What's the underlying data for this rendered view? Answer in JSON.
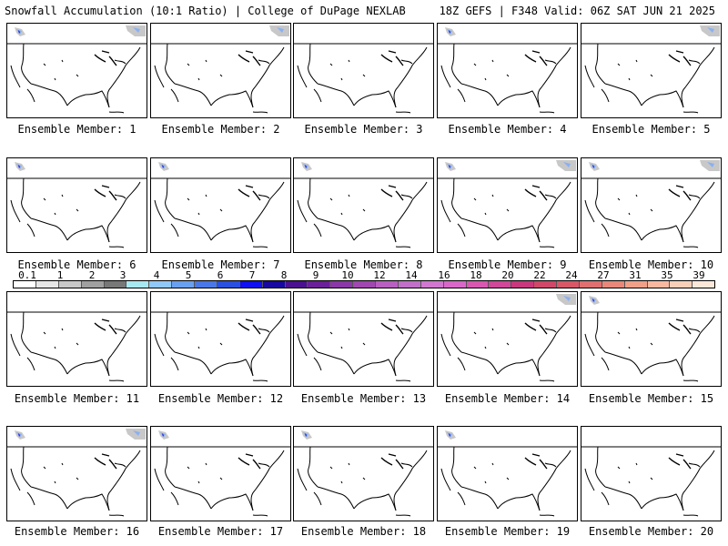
{
  "header": {
    "title": "Snowfall Accumulation (10:1 Ratio) | College of DuPage NEXLAB",
    "run_info": "18Z GEFS | F348 Valid: 06Z SAT JUN 21 2025"
  },
  "members": [
    {
      "label": "Ensemble Member: 1",
      "snow": [
        "west",
        "ne"
      ]
    },
    {
      "label": "Ensemble Member: 2",
      "snow": [
        "ne"
      ]
    },
    {
      "label": "Ensemble Member: 3",
      "snow": []
    },
    {
      "label": "Ensemble Member: 4",
      "snow": [
        "west"
      ]
    },
    {
      "label": "Ensemble Member: 5",
      "snow": [
        "ne"
      ]
    },
    {
      "label": "Ensemble Member: 6",
      "snow": [
        "west"
      ]
    },
    {
      "label": "Ensemble Member: 7",
      "snow": [
        "west"
      ]
    },
    {
      "label": "Ensemble Member: 8",
      "snow": [
        "west"
      ]
    },
    {
      "label": "Ensemble Member: 9",
      "snow": [
        "west",
        "ne"
      ]
    },
    {
      "label": "Ensemble Member: 10",
      "snow": [
        "west",
        "ne"
      ]
    },
    {
      "label": "Ensemble Member: 11",
      "snow": []
    },
    {
      "label": "Ensemble Member: 12",
      "snow": []
    },
    {
      "label": "Ensemble Member: 13",
      "snow": []
    },
    {
      "label": "Ensemble Member: 14",
      "snow": [
        "ne"
      ]
    },
    {
      "label": "Ensemble Member: 15",
      "snow": [
        "west"
      ]
    },
    {
      "label": "Ensemble Member: 16",
      "snow": [
        "west",
        "ne"
      ]
    },
    {
      "label": "Ensemble Member: 17",
      "snow": [
        "west"
      ]
    },
    {
      "label": "Ensemble Member: 18",
      "snow": [
        "west"
      ]
    },
    {
      "label": "Ensemble Member: 19",
      "snow": [
        "west"
      ]
    },
    {
      "label": "Ensemble Member: 20",
      "snow": []
    }
  ],
  "colorbar": {
    "ticks": [
      "0.1",
      "1",
      "2",
      "3",
      "4",
      "5",
      "6",
      "7",
      "8",
      "9",
      "10",
      "12",
      "14",
      "16",
      "18",
      "20",
      "22",
      "24",
      "27",
      "31",
      "35",
      "39"
    ],
    "colors": [
      "#ffffff",
      "#e6e6e6",
      "#c8c8c8",
      "#a0a0a0",
      "#787878",
      "#a8e8f0",
      "#90c8f8",
      "#6aa0f0",
      "#4a78e8",
      "#2a50e0",
      "#1010f0",
      "#1808a0",
      "#4a1090",
      "#6a2098",
      "#8a38a8",
      "#a048b0",
      "#b860c0",
      "#c070c8",
      "#d078d0",
      "#d868c8",
      "#d858b0",
      "#d04898",
      "#c8387c",
      "#d04868",
      "#d85868",
      "#e07070",
      "#e88878",
      "#f0a088",
      "#f8b8a0",
      "#f8d0b8",
      "#fce8d8"
    ]
  },
  "colors": {
    "snow_light": "#c8c8c8",
    "snow_mid": "#8ab0f0",
    "snow_heavy": "#1010e0"
  }
}
